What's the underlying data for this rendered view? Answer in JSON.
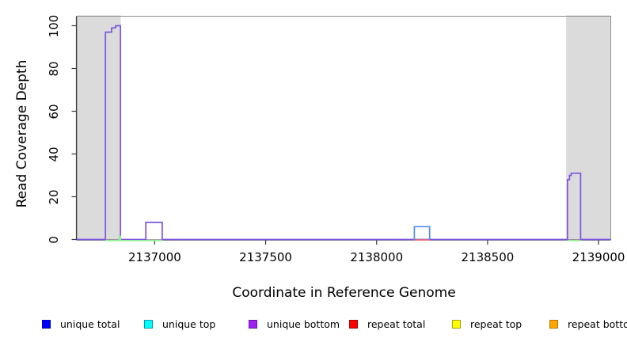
{
  "chart_data": {
    "type": "line",
    "title": "",
    "xlabel": "Coordinate in Reference Genome",
    "ylabel": "Read Coverage Depth",
    "xlim": [
      2136649,
      2139055
    ],
    "ylim": [
      0,
      104
    ],
    "x_ticks": [
      "2137000",
      "2137500",
      "2138000",
      "2138500",
      "2139000"
    ],
    "y_ticks": [
      "0",
      "20",
      "40",
      "60",
      "80",
      "100"
    ],
    "grid": false,
    "background_shading": {
      "color": "#dbdbdb",
      "regions": [
        [
          2136649,
          2136847
        ],
        [
          2138854,
          2139053
        ]
      ]
    },
    "series": [
      {
        "name": "unique-bottom-coverage",
        "color": "#7b55e2",
        "width": 1.7,
        "dy": 0,
        "paths": [
          [
            [
              2136649,
              0
            ],
            [
              2136778,
              0
            ],
            [
              2136778,
              97
            ],
            [
              2136806,
              97
            ],
            [
              2136806,
              99
            ],
            [
              2136824,
              99
            ],
            [
              2136824,
              100
            ],
            [
              2136846,
              100
            ],
            [
              2136846,
              0
            ],
            [
              2136960,
              0
            ],
            [
              2136960,
              8
            ],
            [
              2137034,
              8
            ],
            [
              2137034,
              0
            ],
            [
              2138860,
              0
            ],
            [
              2138860,
              28
            ],
            [
              2138869,
              28
            ],
            [
              2138869,
              30
            ],
            [
              2138877,
              30
            ],
            [
              2138877,
              31
            ],
            [
              2138919,
              31
            ],
            [
              2138919,
              0
            ],
            [
              2139055,
              0
            ]
          ]
        ]
      },
      {
        "name": "baseline-accent-green",
        "color": "#90ee90",
        "width": 1.6,
        "dy": 1.3,
        "paths": [
          [
            [
              2136778,
              0
            ],
            [
              2136840,
              0
            ],
            [
              2136840,
              2
            ],
            [
              2136846,
              2
            ],
            [
              2136846,
              0
            ],
            [
              2137034,
              0
            ]
          ],
          [
            [
              2138860,
              0
            ],
            [
              2138919,
              0
            ]
          ]
        ]
      },
      {
        "name": "mid-peak-base-red",
        "color": "#f3716c",
        "width": 1.7,
        "dy": 0.6,
        "paths": [
          [
            [
              2138170,
              0
            ],
            [
              2138239,
              0
            ]
          ]
        ]
      },
      {
        "name": "mid-peak-blue",
        "color": "#4f8cef",
        "width": 1.7,
        "dy": 0,
        "paths": [
          [
            [
              2138170,
              0
            ],
            [
              2138170,
              6
            ],
            [
              2138239,
              6
            ],
            [
              2138239,
              0
            ]
          ]
        ]
      }
    ]
  },
  "legend": {
    "items": [
      {
        "label": "unique total",
        "fill": "#0000fe",
        "border": "#0000b0"
      },
      {
        "label": "unique top",
        "fill": "#00feff",
        "border": "#009aa8"
      },
      {
        "label": "unique bottom",
        "fill": "#a020f0",
        "border": "#6d13ab"
      },
      {
        "label": "repeat total",
        "fill": "#fe0000",
        "border": "#a80000"
      },
      {
        "label": "repeat top",
        "fill": "#ffff00",
        "border": "#a8a000"
      },
      {
        "label": "repeat bottom",
        "fill": "#ffa500",
        "border": "#b27300"
      }
    ]
  },
  "colors": {
    "frame": "#8f8f8f",
    "axis": "#3a3a3a",
    "text": "#000000",
    "background": "#ffffff"
  }
}
